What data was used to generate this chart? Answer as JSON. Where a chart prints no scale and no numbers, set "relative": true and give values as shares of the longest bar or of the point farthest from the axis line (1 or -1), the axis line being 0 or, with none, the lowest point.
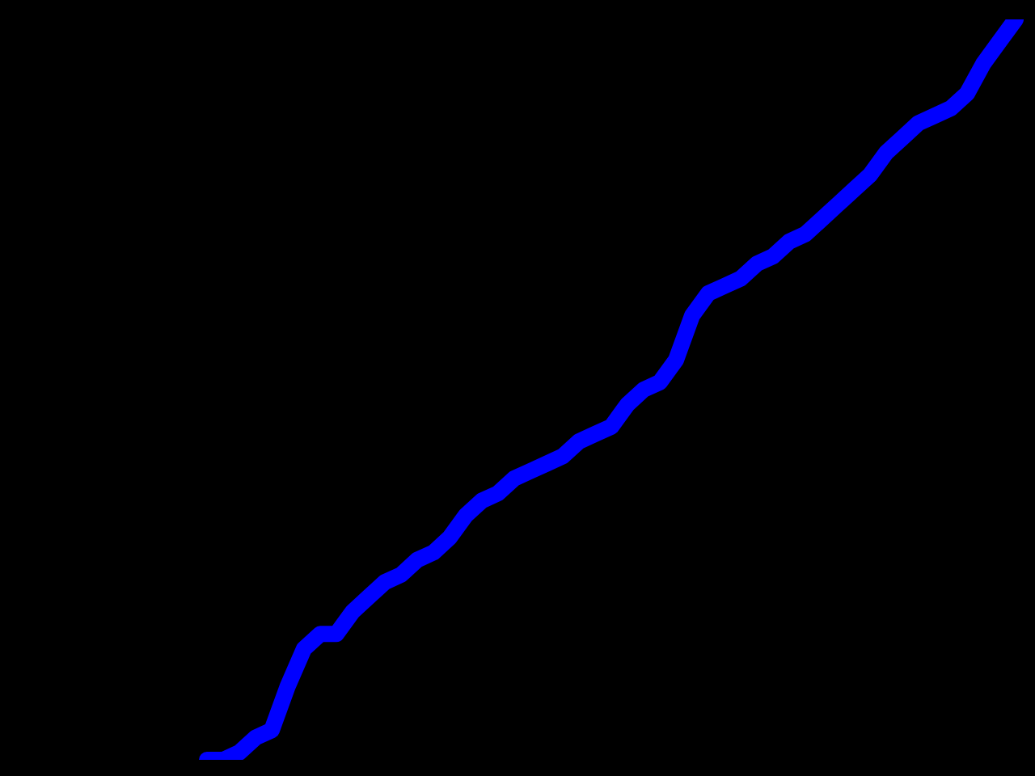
{
  "chart_data": {
    "type": "line",
    "relative": true,
    "legend": false,
    "categories": [
      null,
      null,
      null,
      null,
      null,
      null,
      null,
      null,
      null,
      null,
      null,
      null,
      null,
      null,
      null,
      null,
      null,
      null,
      null,
      null,
      null,
      null,
      null,
      null,
      null,
      null,
      null,
      null,
      null,
      null,
      null,
      null,
      null,
      null,
      null,
      null,
      null,
      null,
      null,
      null,
      null,
      null,
      null,
      null,
      null,
      null,
      null,
      null,
      null,
      null,
      null
    ],
    "series": [
      {
        "color": "#0000ff",
        "values": [
          0,
          0.0,
          0.01,
          0.03,
          0.04,
          0.1,
          0.15,
          0.17,
          0.17,
          0.2,
          0.22,
          0.24,
          0.25,
          0.27,
          0.28,
          0.3,
          0.33,
          0.35,
          0.36,
          0.38,
          0.39,
          0.4,
          0.41,
          0.43,
          0.44,
          0.45,
          0.48,
          0.5,
          0.51,
          0.54,
          0.6,
          0.63,
          0.64,
          0.65,
          0.67,
          0.68,
          0.7,
          0.71,
          0.73,
          0.75,
          0.77,
          0.79,
          0.82,
          0.84,
          0.86,
          0.87,
          0.88,
          0.9,
          0.94,
          0.97,
          1
        ]
      }
    ]
  }
}
